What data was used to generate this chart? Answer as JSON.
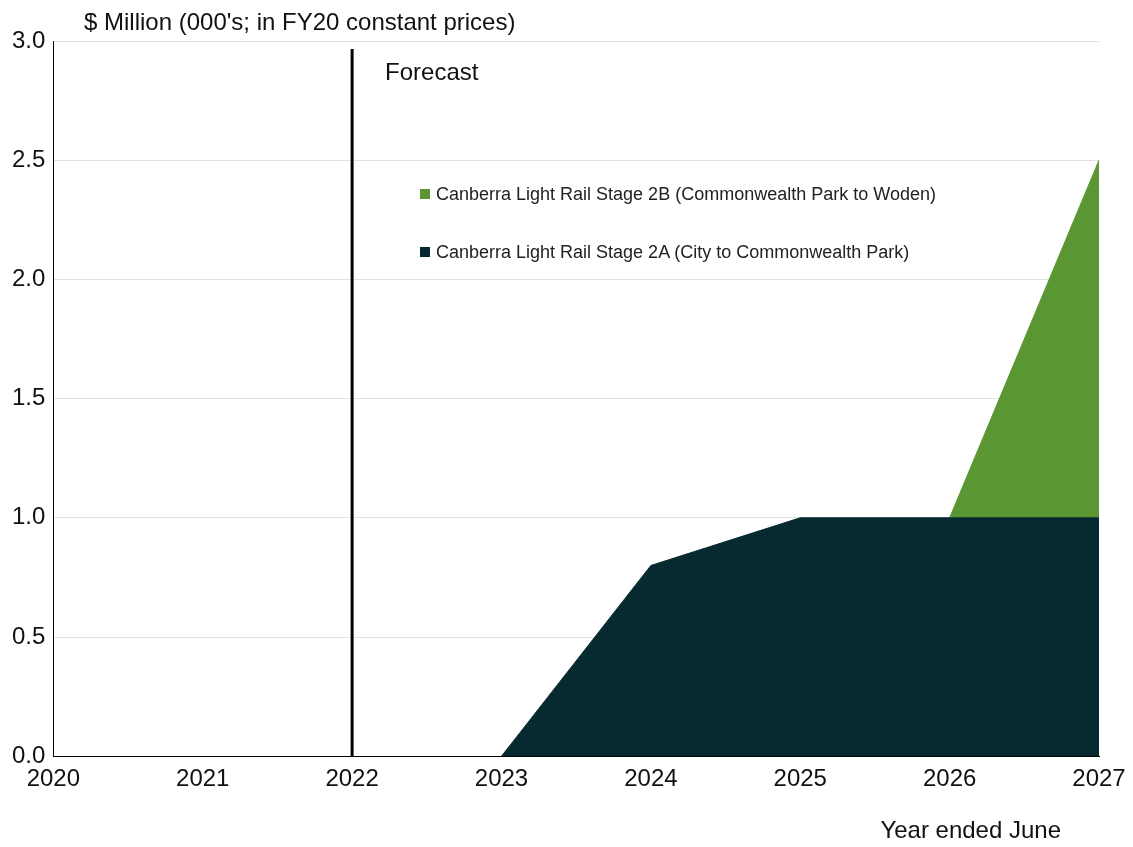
{
  "chart_data": {
    "type": "area",
    "stacked": true,
    "ylabel": "$ Million (000's; in FY20 constant prices)",
    "xlabel": "Year ended June",
    "categories": [
      "2020",
      "2021",
      "2022",
      "2023",
      "2024",
      "2025",
      "2026",
      "2027"
    ],
    "series": [
      {
        "name": "Canberra Light Rail Stage 2A (City to Commonwealth Park)",
        "color": "#062a30",
        "values": [
          null,
          null,
          null,
          0,
          0.8,
          1.0,
          1.0,
          1.0
        ]
      },
      {
        "name": "Canberra Light Rail Stage 2B (Commonwealth Park to Woden)",
        "color": "#5a9632",
        "values": [
          null,
          null,
          null,
          null,
          null,
          null,
          0,
          1.5
        ]
      }
    ],
    "ylim": [
      0,
      3
    ],
    "yticks": [
      {
        "value": 0,
        "label": "0.0"
      },
      {
        "value": 0.5,
        "label": "0.5"
      },
      {
        "value": 1,
        "label": "1.0"
      },
      {
        "value": 1.5,
        "label": "1.5"
      },
      {
        "value": 2,
        "label": "2.0"
      },
      {
        "value": 2.5,
        "label": "2.5"
      },
      {
        "value": 3,
        "label": "3.0"
      }
    ],
    "grid": "y",
    "legend": "right",
    "ref_lines": [
      {
        "axis": "x",
        "value": "2022",
        "label": "Forecast",
        "color": "#000000"
      }
    ]
  }
}
